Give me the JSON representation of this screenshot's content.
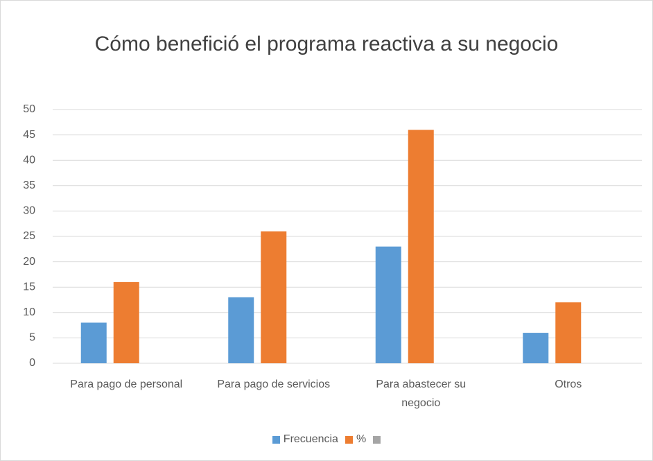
{
  "chart_data": {
    "type": "bar",
    "title": "Cómo benefició el programa reactiva a su negocio",
    "categories": [
      "Para pago de personal",
      "Para pago de servicios",
      "Para abastecer su negocio",
      "Otros"
    ],
    "series": [
      {
        "name": "Frecuencia",
        "color": "#5b9bd5",
        "values": [
          8,
          13,
          23,
          6
        ]
      },
      {
        "name": "%",
        "color": "#ed7d31",
        "values": [
          16,
          26,
          46,
          12
        ]
      },
      {
        "name": null,
        "color": "#a5a5a5",
        "values": [
          null,
          null,
          null,
          null
        ]
      }
    ],
    "ylim": [
      0,
      50
    ],
    "yticks": [
      0,
      5,
      10,
      15,
      20,
      25,
      30,
      35,
      40,
      45,
      50
    ],
    "grid": true,
    "legend": "bottom"
  }
}
